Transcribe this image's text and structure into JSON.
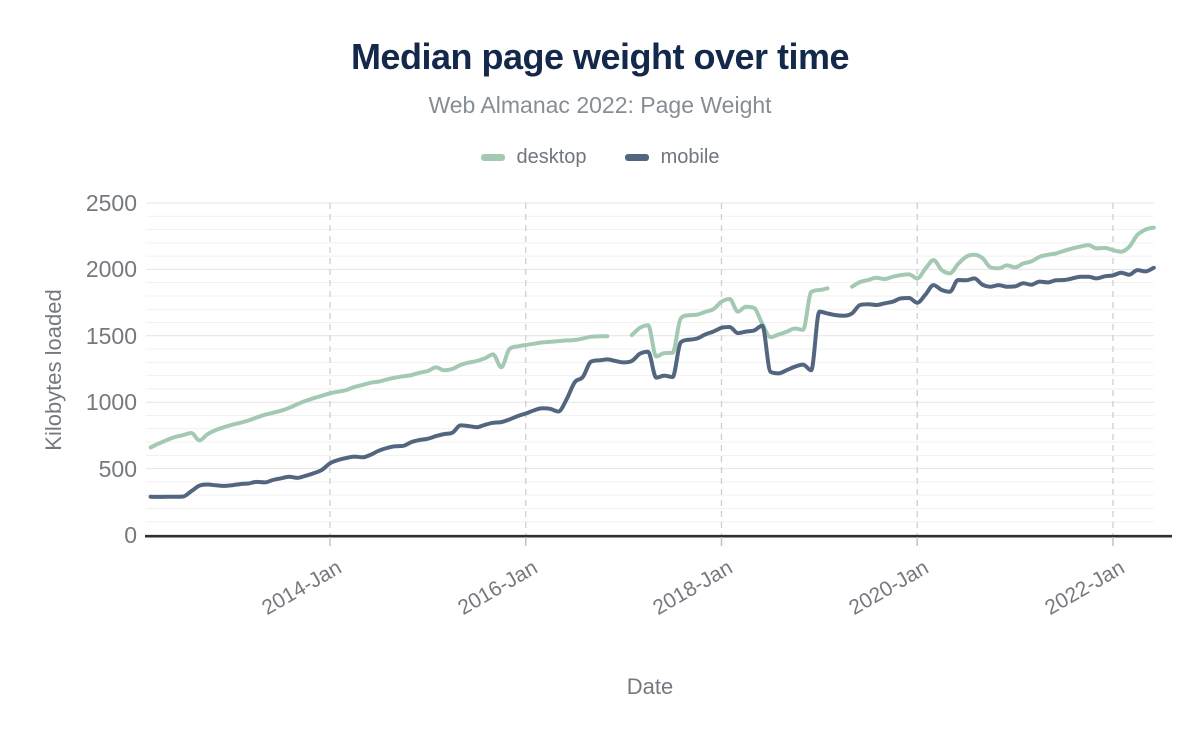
{
  "header": {
    "title": "Median page weight over time",
    "subtitle": "Web Almanac 2022: Page Weight"
  },
  "colors": {
    "title": "#14284b",
    "subtitle": "#888d95",
    "axis_label": "#75797f",
    "axis_line": "#2f2f2f",
    "minor_grid": "#f1f1f1",
    "major_grid": "#e4e4e4",
    "year_grid_dashed": "#cfcfcf",
    "tick_mark": "#c2c2c2",
    "desktop": "#a3c9b2",
    "mobile": "#53667f"
  },
  "chart_data": {
    "type": "line",
    "title": "Median page weight over time",
    "subtitle": "Web Almanac 2022: Page Weight",
    "xlabel": "Date",
    "ylabel": "Kilobytes loaded",
    "ylim": [
      0,
      2500
    ],
    "y_major_ticks": [
      0,
      500,
      1000,
      1500,
      2000,
      2500
    ],
    "y_minor_step": 100,
    "grid": {
      "minor_horizontal": true,
      "vertical_dashed_at_year_ticks": true
    },
    "legend_position": "top",
    "x_tick_labels": [
      "2014-Jan",
      "2016-Jan",
      "2018-Jan",
      "2020-Jan",
      "2022-Jan"
    ],
    "x_tick_indices": [
      22,
      46,
      70,
      94,
      118
    ],
    "x": [
      "2012-Mar",
      "2012-Apr",
      "2012-May",
      "2012-Jun",
      "2012-Jul",
      "2012-Aug",
      "2012-Sep",
      "2012-Oct",
      "2012-Nov",
      "2012-Dec",
      "2013-Jan",
      "2013-Feb",
      "2013-Mar",
      "2013-Apr",
      "2013-May",
      "2013-Jun",
      "2013-Jul",
      "2013-Aug",
      "2013-Sep",
      "2013-Oct",
      "2013-Nov",
      "2013-Dec",
      "2014-Jan",
      "2014-Feb",
      "2014-Mar",
      "2014-Apr",
      "2014-May",
      "2014-Jun",
      "2014-Jul",
      "2014-Aug",
      "2014-Sep",
      "2014-Oct",
      "2014-Nov",
      "2014-Dec",
      "2015-Jan",
      "2015-Feb",
      "2015-Mar",
      "2015-Apr",
      "2015-May",
      "2015-Jun",
      "2015-Jul",
      "2015-Aug",
      "2015-Sep",
      "2015-Oct",
      "2015-Nov",
      "2015-Dec",
      "2016-Jan",
      "2016-Feb",
      "2016-Mar",
      "2016-Apr",
      "2016-May",
      "2016-Jun",
      "2016-Jul",
      "2016-Aug",
      "2016-Sep",
      "2016-Oct",
      "2016-Nov",
      "2016-Dec",
      "2017-Jan",
      "2017-Feb",
      "2017-Mar",
      "2017-Apr",
      "2017-May",
      "2017-Jun",
      "2017-Jul",
      "2017-Aug",
      "2017-Sep",
      "2017-Oct",
      "2017-Nov",
      "2017-Dec",
      "2018-Jan",
      "2018-Feb",
      "2018-Mar",
      "2018-Apr",
      "2018-May",
      "2018-Jun",
      "2018-Jul",
      "2018-Aug",
      "2018-Sep",
      "2018-Oct",
      "2018-Nov",
      "2018-Dec",
      "2019-Jan",
      "2019-Feb",
      "2019-Mar",
      "2019-Apr",
      "2019-May",
      "2019-Jun",
      "2019-Jul",
      "2019-Aug",
      "2019-Sep",
      "2019-Oct",
      "2019-Nov",
      "2019-Dec",
      "2020-Jan",
      "2020-Feb",
      "2020-Mar",
      "2020-Apr",
      "2020-May",
      "2020-Jun",
      "2020-Jul",
      "2020-Aug",
      "2020-Sep",
      "2020-Oct",
      "2020-Nov",
      "2020-Dec",
      "2021-Jan",
      "2021-Feb",
      "2021-Mar",
      "2021-Apr",
      "2021-May",
      "2021-Jun",
      "2021-Jul",
      "2021-Aug",
      "2021-Sep",
      "2021-Oct",
      "2021-Nov",
      "2021-Dec",
      "2022-Jan",
      "2022-Feb",
      "2022-Mar",
      "2022-Apr",
      "2022-May",
      "2022-Jun"
    ],
    "series": [
      {
        "name": "desktop",
        "color": "#a3c9b2",
        "values": [
          660,
          688,
          715,
          738,
          752,
          768,
          712,
          760,
          790,
          812,
          830,
          845,
          862,
          885,
          905,
          920,
          936,
          958,
          985,
          1010,
          1030,
          1048,
          1067,
          1079,
          1092,
          1115,
          1130,
          1147,
          1155,
          1172,
          1185,
          1195,
          1205,
          1222,
          1235,
          1262,
          1240,
          1250,
          1280,
          1298,
          1310,
          1331,
          1360,
          1263,
          1400,
          1420,
          1431,
          1440,
          1450,
          1455,
          1460,
          1465,
          1468,
          1480,
          1493,
          1496,
          1497,
          null,
          null,
          1505,
          1560,
          1580,
          1345,
          1370,
          1372,
          1630,
          1655,
          1660,
          1680,
          1700,
          1757,
          1777,
          1682,
          1719,
          1710,
          1590,
          1490,
          1510,
          1531,
          1555,
          1545,
          1830,
          1845,
          1857,
          null,
          null,
          1870,
          1905,
          1920,
          1937,
          1928,
          1945,
          1957,
          1962,
          1932,
          2005,
          2070,
          1995,
          1970,
          2040,
          2095,
          2110,
          2085,
          2015,
          2008,
          2030,
          2015,
          2045,
          2060,
          2095,
          2110,
          2120,
          2140,
          2158,
          2172,
          2183,
          2158,
          2162,
          2146,
          2133,
          2171,
          2260,
          2300,
          2315
        ]
      },
      {
        "name": "mobile",
        "color": "#53667f",
        "values": [
          288,
          287,
          288,
          288,
          290,
          330,
          372,
          380,
          374,
          370,
          375,
          383,
          388,
          400,
          396,
          414,
          427,
          438,
          430,
          446,
          465,
          490,
          540,
          565,
          580,
          590,
          585,
          605,
          635,
          655,
          668,
          672,
          700,
          715,
          725,
          745,
          760,
          770,
          825,
          820,
          812,
          830,
          845,
          850,
          870,
          895,
          915,
          938,
          955,
          950,
          930,
          1020,
          1150,
          1190,
          1305,
          1315,
          1322,
          1310,
          1300,
          1310,
          1365,
          1380,
          1185,
          1200,
          1190,
          1450,
          1470,
          1480,
          1510,
          1532,
          1560,
          1566,
          1520,
          1532,
          1540,
          1575,
          1230,
          1217,
          1242,
          1267,
          1283,
          1240,
          1682,
          1668,
          1656,
          1651,
          1669,
          1732,
          1737,
          1732,
          1745,
          1757,
          1782,
          1785,
          1749,
          1810,
          1882,
          1845,
          1832,
          1920,
          1918,
          1932,
          1885,
          1870,
          1882,
          1870,
          1872,
          1895,
          1885,
          1908,
          1902,
          1918,
          1920,
          1932,
          1945,
          1945,
          1932,
          1948,
          1955,
          1975,
          1960,
          1995,
          1985,
          2012
        ]
      }
    ]
  }
}
